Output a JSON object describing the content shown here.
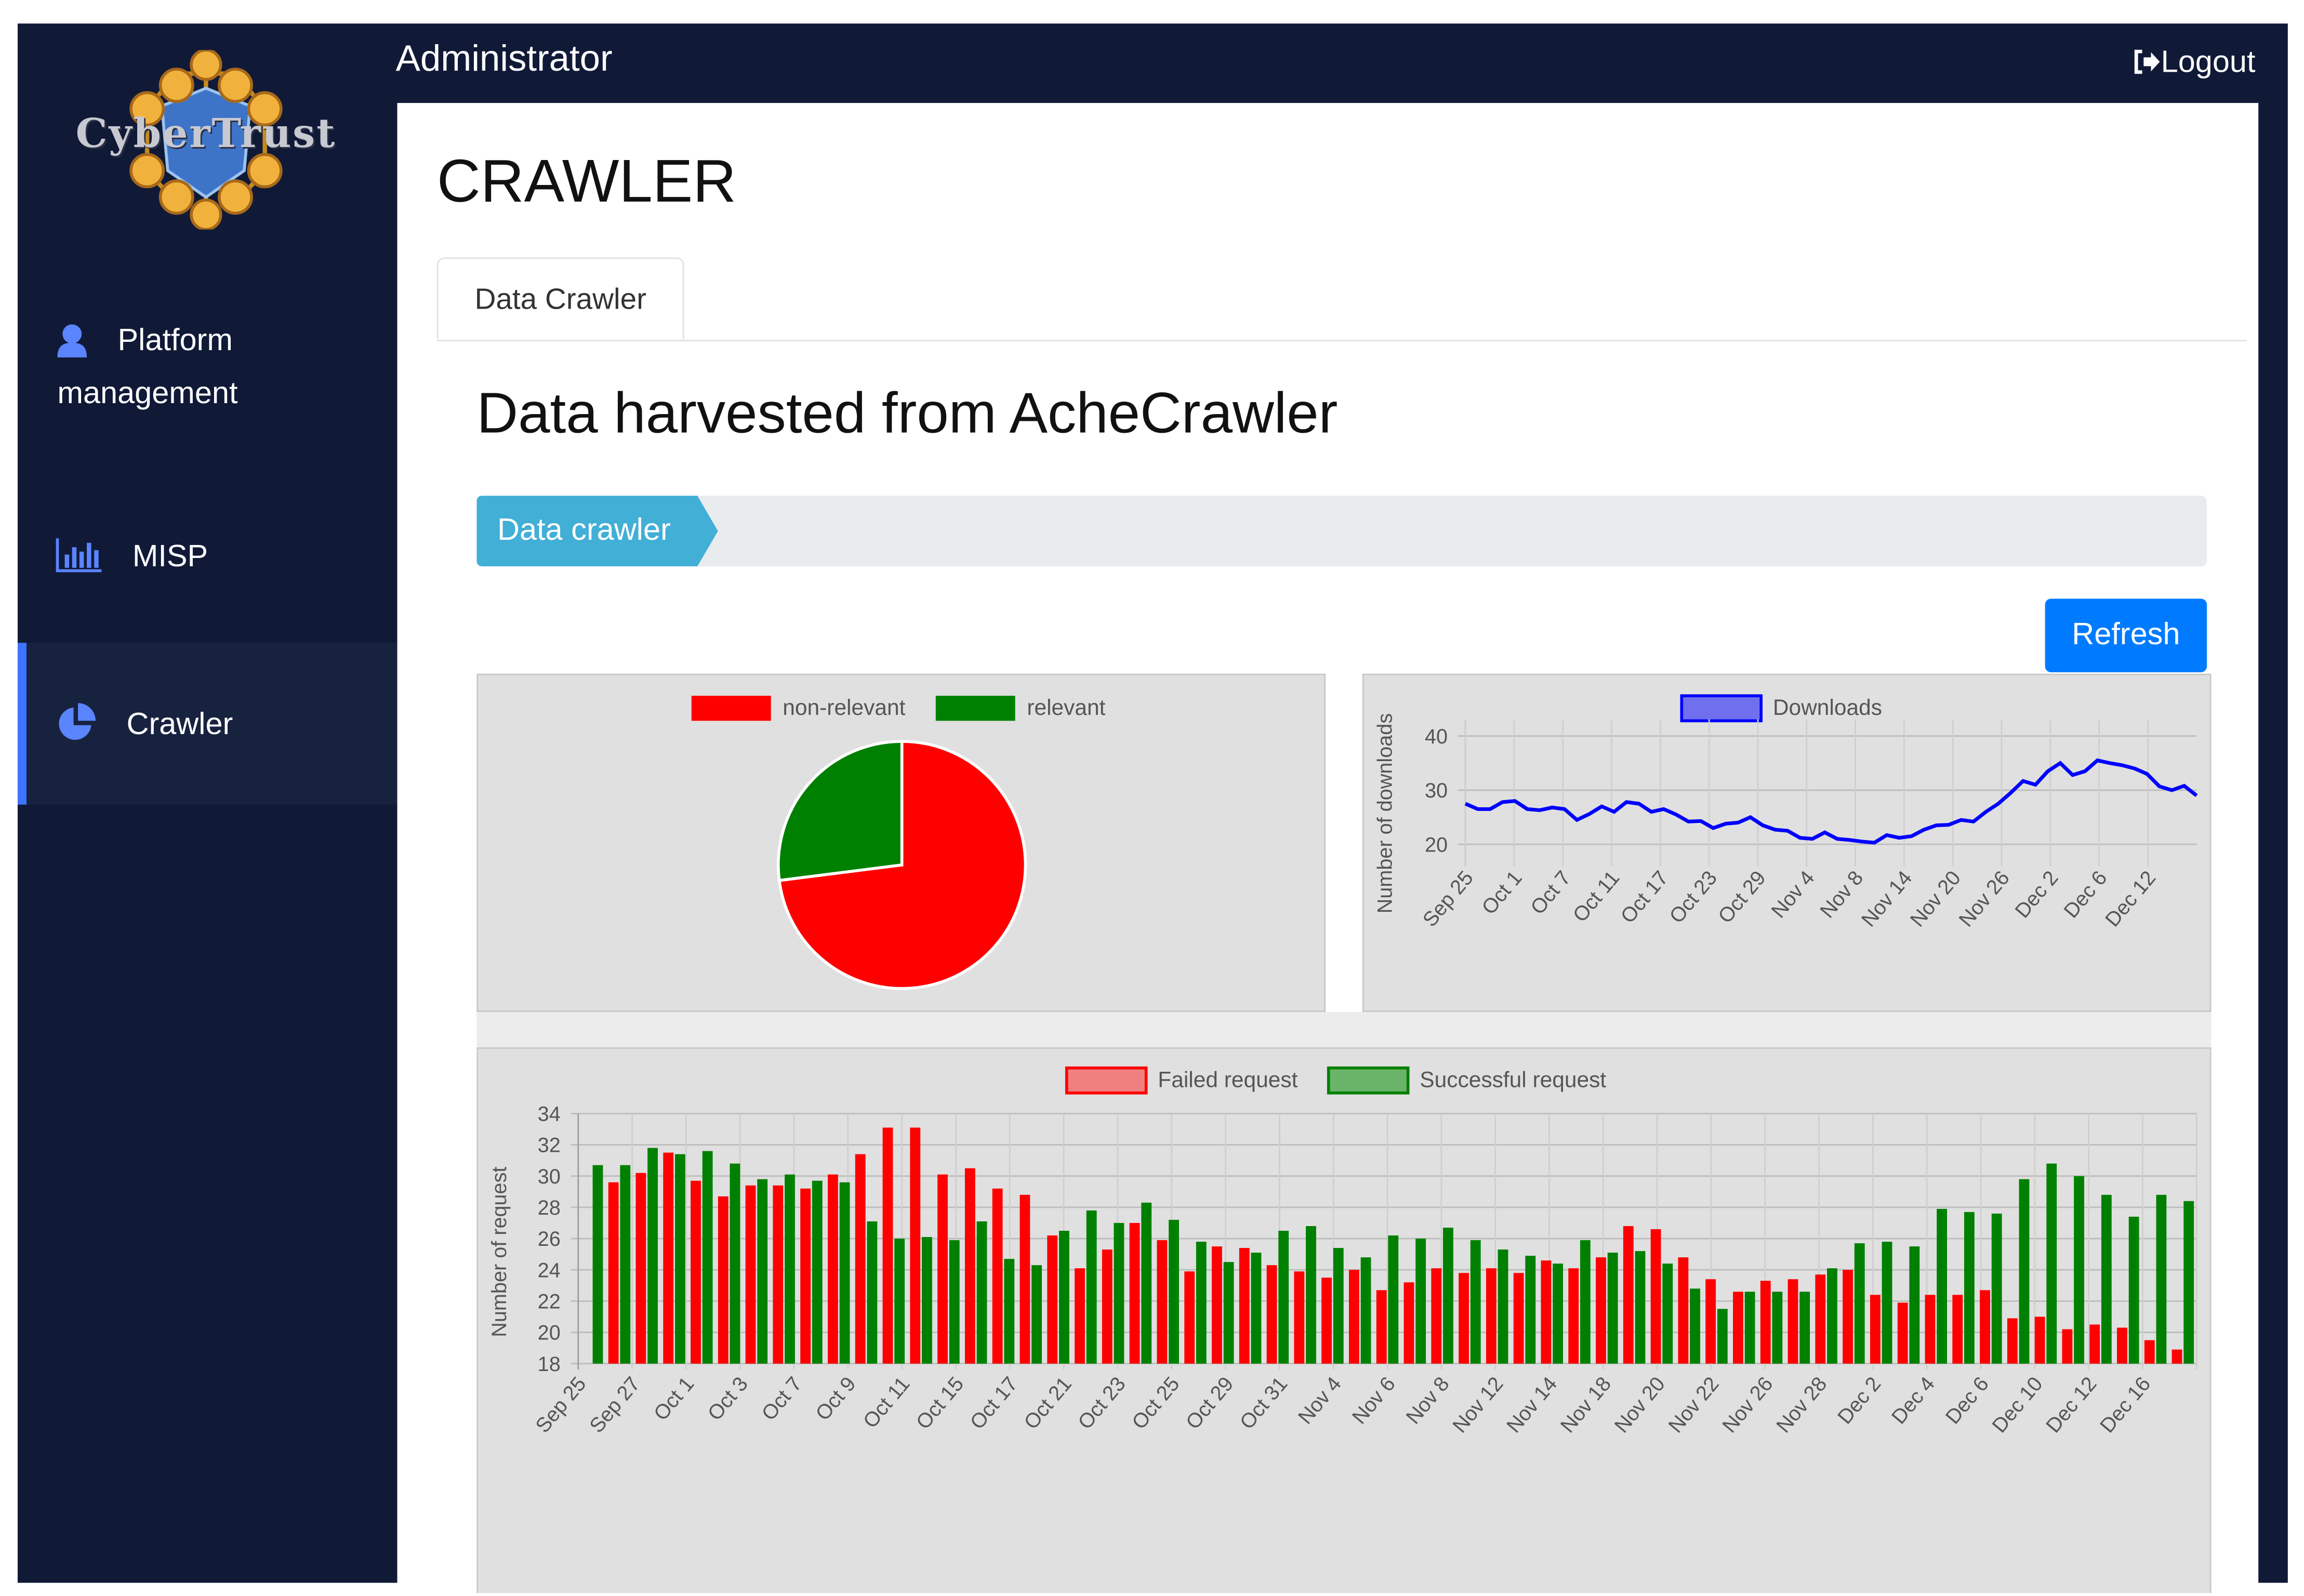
{
  "brand": {
    "logo_text": "CyberTrust"
  },
  "sidebar": {
    "items": [
      {
        "label_line1": "Platform",
        "label_line2": "management",
        "icon": "user-icon"
      },
      {
        "label": "MISP",
        "icon": "bar-chart-icon"
      },
      {
        "label": "Crawler",
        "icon": "pie-chart-icon"
      }
    ]
  },
  "header": {
    "user": "Administrator",
    "logout_label": "Logout"
  },
  "page": {
    "title": "CRAWLER",
    "tab_label": "Data Crawler",
    "section_title": "Data harvested from AcheCrawler",
    "breadcrumb": "Data crawler",
    "refresh_label": "Refresh"
  },
  "colors": {
    "sidebar_bg": "#101a37",
    "accent": "#007bff",
    "breadcrumb": "#41afd6",
    "failed": "#ff0000",
    "success": "#008000",
    "downloads": "#0000ff",
    "panel_bg": "#e0e0e0"
  },
  "chart_data": [
    {
      "type": "pie",
      "labels": [
        "non-relevant",
        "relevant"
      ],
      "values": [
        73,
        27
      ],
      "colors": [
        "#ff0000",
        "#008000"
      ]
    },
    {
      "type": "line",
      "series": [
        {
          "name": "Downloads",
          "color": "#0000ff",
          "values": [
            27.5,
            26.5,
            26.5,
            27.8,
            28,
            26.5,
            26.3,
            26.8,
            26.5,
            24.5,
            25.6,
            27,
            26,
            27.8,
            27.5,
            26,
            26.5,
            25.5,
            24.2,
            24.3,
            23,
            23.8,
            24,
            25,
            23.5,
            22.7,
            22.5,
            21.2,
            21,
            22.2,
            21,
            20.8,
            20.5,
            20.3,
            21.7,
            21.2,
            21.5,
            22.7,
            23.5,
            23.6,
            24.5,
            24.2,
            26,
            27.5,
            29.5,
            31.7,
            31,
            33.5,
            35,
            32.8,
            33.5,
            35.5,
            35,
            34.6,
            34,
            33,
            30.7,
            30,
            30.8,
            29
          ]
        }
      ],
      "ylabel": "Number of downloads",
      "yticks": [
        20,
        30,
        40
      ],
      "ylim": [
        17,
        42
      ],
      "xtick_labels": [
        "Sep 25",
        "Oct 1",
        "Oct 7",
        "Oct 11",
        "Oct 17",
        "Oct 23",
        "Oct 29",
        "Nov 4",
        "Nov 8",
        "Nov 14",
        "Nov 20",
        "Nov 26",
        "Dec 2",
        "Dec 6",
        "Dec 12"
      ],
      "legend": "top"
    },
    {
      "type": "bar",
      "series": [
        {
          "name": "Failed request",
          "color": "#ff0000",
          "values": [
            null,
            29.6,
            30.2,
            31.5,
            29.7,
            28.7,
            29.4,
            29.4,
            29.2,
            30.1,
            31.4,
            33.1,
            33.1,
            30.1,
            30.5,
            29.2,
            28.8,
            26.2,
            24.1,
            25.3,
            27,
            25.9,
            23.9,
            25.5,
            25.4,
            24.3,
            23.9,
            23.5,
            24,
            22.7,
            23.2,
            24.1,
            23.8,
            24.1,
            23.8,
            24.6,
            24.1,
            24.8,
            26.8,
            26.6,
            24.8,
            23.4,
            22.6,
            23.3,
            23.4,
            23.7,
            24,
            22.4,
            21.9,
            22.4,
            22.4,
            22.7,
            20.9,
            21,
            20.2,
            20.5,
            20.3,
            19.5,
            18.9
          ]
        },
        {
          "name": "Successful request",
          "color": "#008000",
          "values": [
            30.7,
            30.7,
            31.8,
            31.4,
            31.6,
            30.8,
            29.8,
            30.1,
            29.7,
            29.6,
            27.1,
            26,
            26.1,
            25.9,
            27.1,
            24.7,
            24.3,
            26.5,
            27.8,
            27,
            28.3,
            27.2,
            25.8,
            24.5,
            25.1,
            26.5,
            26.8,
            25.4,
            24.8,
            26.2,
            26,
            26.7,
            25.9,
            25.3,
            24.9,
            24.4,
            25.9,
            25.1,
            25.2,
            24.4,
            22.8,
            21.5,
            22.6,
            22.6,
            22.6,
            24.1,
            25.7,
            25.8,
            25.5,
            27.9,
            27.7,
            27.6,
            29.8,
            30.8,
            30,
            28.8,
            27.4,
            28.8,
            28.4
          ]
        }
      ],
      "ylabel": "Number of request",
      "yticks": [
        18,
        20,
        22,
        24,
        26,
        28,
        30,
        32,
        34
      ],
      "ylim": [
        18,
        34
      ],
      "xtick_labels": [
        "Sep 25",
        "Sep 27",
        "Oct 1",
        "Oct 3",
        "Oct 7",
        "Oct 9",
        "Oct 11",
        "Oct 15",
        "Oct 17",
        "Oct 21",
        "Oct 23",
        "Oct 25",
        "Oct 29",
        "Oct 31",
        "Nov 4",
        "Nov 6",
        "Nov 8",
        "Nov 12",
        "Nov 14",
        "Nov 18",
        "Nov 20",
        "Nov 22",
        "Nov 26",
        "Nov 28",
        "Dec 2",
        "Dec 4",
        "Dec 6",
        "Dec 10",
        "Dec 12",
        "Dec 16"
      ],
      "legend": "top"
    }
  ]
}
